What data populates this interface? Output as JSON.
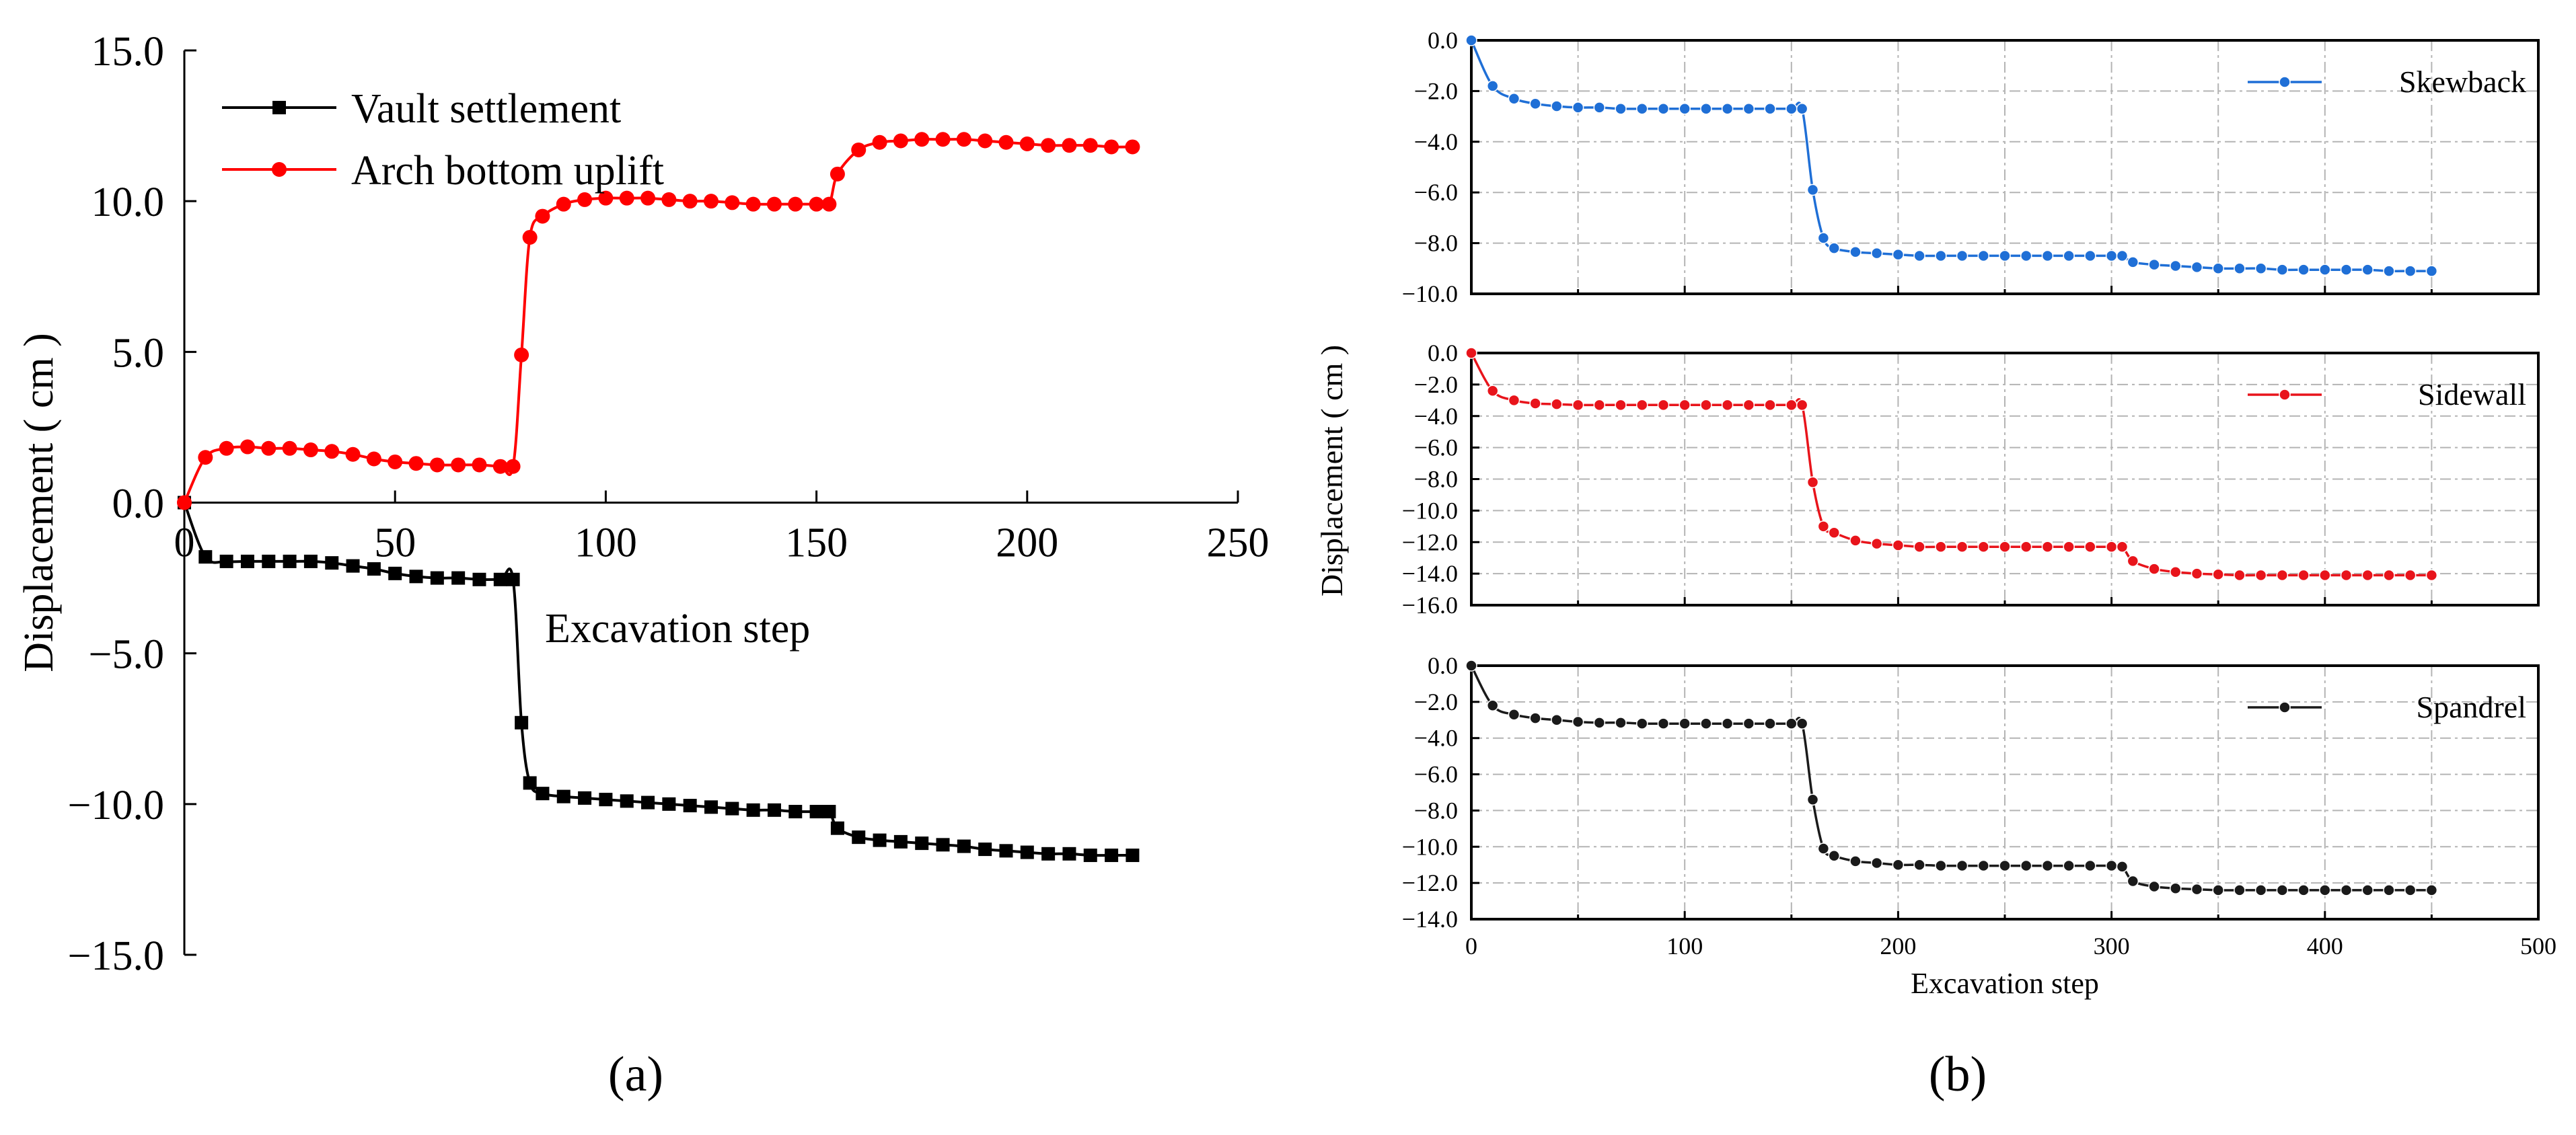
{
  "panel_labels": {
    "a": "(a)",
    "b": "(b)"
  },
  "chart_data": [
    {
      "id": "a",
      "type": "line",
      "title": "",
      "xlabel": "Excavation step",
      "ylabel": "Displacement ( cm )",
      "xlim": [
        0,
        250
      ],
      "ylim": [
        -15,
        15
      ],
      "xticks": [
        "0",
        "50",
        "100",
        "150",
        "200",
        "250"
      ],
      "yticks": [
        "15.0",
        "10.0",
        "5.0",
        "0.0",
        "−5.0",
        "−10.0",
        "−15.0"
      ],
      "grid": false,
      "legend_position": "top-left",
      "series": [
        {
          "name": "Vault settlement",
          "color": "#000000",
          "marker": "square",
          "x": [
            0,
            5,
            10,
            15,
            20,
            25,
            30,
            35,
            40,
            45,
            50,
            55,
            60,
            65,
            70,
            75,
            78,
            80,
            82,
            85,
            90,
            95,
            100,
            105,
            110,
            115,
            120,
            125,
            130,
            135,
            140,
            145,
            150,
            153,
            155,
            160,
            165,
            170,
            175,
            180,
            185,
            190,
            195,
            200,
            205,
            210,
            215,
            220,
            225
          ],
          "y": [
            0,
            -1.8,
            -1.95,
            -1.95,
            -1.95,
            -1.95,
            -1.95,
            -2.0,
            -2.1,
            -2.2,
            -2.35,
            -2.45,
            -2.5,
            -2.5,
            -2.55,
            -2.55,
            -2.55,
            -7.3,
            -9.3,
            -9.65,
            -9.75,
            -9.8,
            -9.85,
            -9.9,
            -9.95,
            -10.0,
            -10.05,
            -10.1,
            -10.15,
            -10.2,
            -10.2,
            -10.25,
            -10.25,
            -10.25,
            -10.8,
            -11.1,
            -11.2,
            -11.25,
            -11.3,
            -11.35,
            -11.4,
            -11.5,
            -11.55,
            -11.6,
            -11.65,
            -11.65,
            -11.7,
            -11.7,
            -11.7
          ]
        },
        {
          "name": "Arch bottom uplift",
          "color": "#ff0000",
          "marker": "circle",
          "x": [
            0,
            5,
            10,
            15,
            20,
            25,
            30,
            35,
            40,
            45,
            50,
            55,
            60,
            65,
            70,
            75,
            78,
            80,
            82,
            85,
            90,
            95,
            100,
            105,
            110,
            115,
            120,
            125,
            130,
            135,
            140,
            145,
            150,
            153,
            155,
            160,
            165,
            170,
            175,
            180,
            185,
            190,
            195,
            200,
            205,
            210,
            215,
            220,
            225
          ],
          "y": [
            0,
            1.5,
            1.8,
            1.85,
            1.8,
            1.8,
            1.75,
            1.7,
            1.6,
            1.45,
            1.35,
            1.3,
            1.25,
            1.25,
            1.25,
            1.2,
            1.2,
            4.9,
            8.8,
            9.5,
            9.9,
            10.05,
            10.1,
            10.1,
            10.1,
            10.05,
            10.0,
            10.0,
            9.95,
            9.9,
            9.9,
            9.9,
            9.9,
            9.9,
            10.9,
            11.7,
            11.95,
            12.0,
            12.05,
            12.05,
            12.05,
            12.0,
            11.95,
            11.9,
            11.85,
            11.85,
            11.85,
            11.8,
            11.8
          ]
        }
      ]
    },
    {
      "id": "b1",
      "type": "line",
      "title": "",
      "xlabel": "",
      "ylabel": "Displacement ( cm )",
      "xlim": [
        0,
        500
      ],
      "ylim": [
        -10,
        0
      ],
      "xticks": [],
      "yticks": [
        "0.0",
        "−2.0",
        "−4.0",
        "−6.0",
        "−8.0",
        "−10.0"
      ],
      "grid": true,
      "legend_position": "top-right",
      "series": [
        {
          "name": "Skewback",
          "color": "#1f6fd6",
          "marker": "circle",
          "x": [
            0,
            10,
            20,
            30,
            40,
            50,
            60,
            70,
            80,
            90,
            100,
            110,
            120,
            130,
            140,
            150,
            155,
            160,
            165,
            170,
            180,
            190,
            200,
            210,
            220,
            230,
            240,
            250,
            260,
            270,
            280,
            290,
            300,
            305,
            310,
            320,
            330,
            340,
            350,
            360,
            370,
            380,
            390,
            400,
            410,
            420,
            430,
            440,
            450
          ],
          "y": [
            0,
            -1.8,
            -2.3,
            -2.5,
            -2.6,
            -2.65,
            -2.65,
            -2.7,
            -2.7,
            -2.7,
            -2.7,
            -2.7,
            -2.7,
            -2.7,
            -2.7,
            -2.7,
            -2.7,
            -5.9,
            -7.8,
            -8.2,
            -8.35,
            -8.4,
            -8.45,
            -8.5,
            -8.5,
            -8.5,
            -8.5,
            -8.5,
            -8.5,
            -8.5,
            -8.5,
            -8.5,
            -8.5,
            -8.5,
            -8.75,
            -8.85,
            -8.9,
            -8.95,
            -9.0,
            -9.0,
            -9.0,
            -9.05,
            -9.05,
            -9.05,
            -9.05,
            -9.05,
            -9.1,
            -9.1,
            -9.1
          ]
        }
      ]
    },
    {
      "id": "b2",
      "type": "line",
      "title": "",
      "xlabel": "",
      "ylabel": "",
      "xlim": [
        0,
        500
      ],
      "ylim": [
        -16,
        0
      ],
      "xticks": [],
      "yticks": [
        "0.0",
        "−2.0",
        "−4.0",
        "−6.0",
        "−8.0",
        "−10.0",
        "−12.0",
        "−14.0",
        "−16.0"
      ],
      "grid": true,
      "legend_position": "top-right",
      "series": [
        {
          "name": "Sidewall",
          "color": "#e8141b",
          "marker": "circle",
          "x": [
            0,
            10,
            20,
            30,
            40,
            50,
            60,
            70,
            80,
            90,
            100,
            110,
            120,
            130,
            140,
            150,
            155,
            160,
            165,
            170,
            180,
            190,
            200,
            210,
            220,
            230,
            240,
            250,
            260,
            270,
            280,
            290,
            300,
            305,
            310,
            320,
            330,
            340,
            350,
            360,
            370,
            380,
            390,
            400,
            410,
            420,
            430,
            440,
            450
          ],
          "y": [
            0,
            -2.4,
            -3.0,
            -3.2,
            -3.25,
            -3.3,
            -3.3,
            -3.3,
            -3.3,
            -3.3,
            -3.3,
            -3.3,
            -3.3,
            -3.3,
            -3.3,
            -3.3,
            -3.3,
            -8.2,
            -11.0,
            -11.4,
            -11.9,
            -12.1,
            -12.2,
            -12.3,
            -12.3,
            -12.3,
            -12.3,
            -12.3,
            -12.3,
            -12.3,
            -12.3,
            -12.3,
            -12.3,
            -12.3,
            -13.2,
            -13.7,
            -13.9,
            -14.0,
            -14.05,
            -14.1,
            -14.1,
            -14.1,
            -14.1,
            -14.1,
            -14.1,
            -14.1,
            -14.1,
            -14.1,
            -14.1
          ]
        }
      ]
    },
    {
      "id": "b3",
      "type": "line",
      "title": "",
      "xlabel": "Excavation step",
      "ylabel": "",
      "xlim": [
        0,
        500
      ],
      "ylim": [
        -14,
        0
      ],
      "xticks": [
        "0",
        "100",
        "200",
        "300",
        "400",
        "500"
      ],
      "yticks": [
        "0.0",
        "−2.0",
        "−4.0",
        "−6.0",
        "−8.0",
        "−10.0",
        "−12.0",
        "−14.0"
      ],
      "grid": true,
      "legend_position": "top-right",
      "series": [
        {
          "name": "Spandrel",
          "color": "#1a1a1a",
          "marker": "circle",
          "x": [
            0,
            10,
            20,
            30,
            40,
            50,
            60,
            70,
            80,
            90,
            100,
            110,
            120,
            130,
            140,
            150,
            155,
            160,
            165,
            170,
            180,
            190,
            200,
            210,
            220,
            230,
            240,
            250,
            260,
            270,
            280,
            290,
            300,
            305,
            310,
            320,
            330,
            340,
            350,
            360,
            370,
            380,
            390,
            400,
            410,
            420,
            430,
            440,
            450
          ],
          "y": [
            0,
            -2.2,
            -2.7,
            -2.9,
            -3.0,
            -3.1,
            -3.15,
            -3.15,
            -3.2,
            -3.2,
            -3.2,
            -3.2,
            -3.2,
            -3.2,
            -3.2,
            -3.2,
            -3.2,
            -7.4,
            -10.1,
            -10.5,
            -10.8,
            -10.9,
            -11.0,
            -11.0,
            -11.05,
            -11.05,
            -11.05,
            -11.05,
            -11.05,
            -11.05,
            -11.05,
            -11.05,
            -11.05,
            -11.1,
            -11.9,
            -12.2,
            -12.3,
            -12.35,
            -12.4,
            -12.4,
            -12.4,
            -12.4,
            -12.4,
            -12.4,
            -12.4,
            -12.4,
            -12.4,
            -12.4,
            -12.4
          ]
        }
      ]
    }
  ]
}
